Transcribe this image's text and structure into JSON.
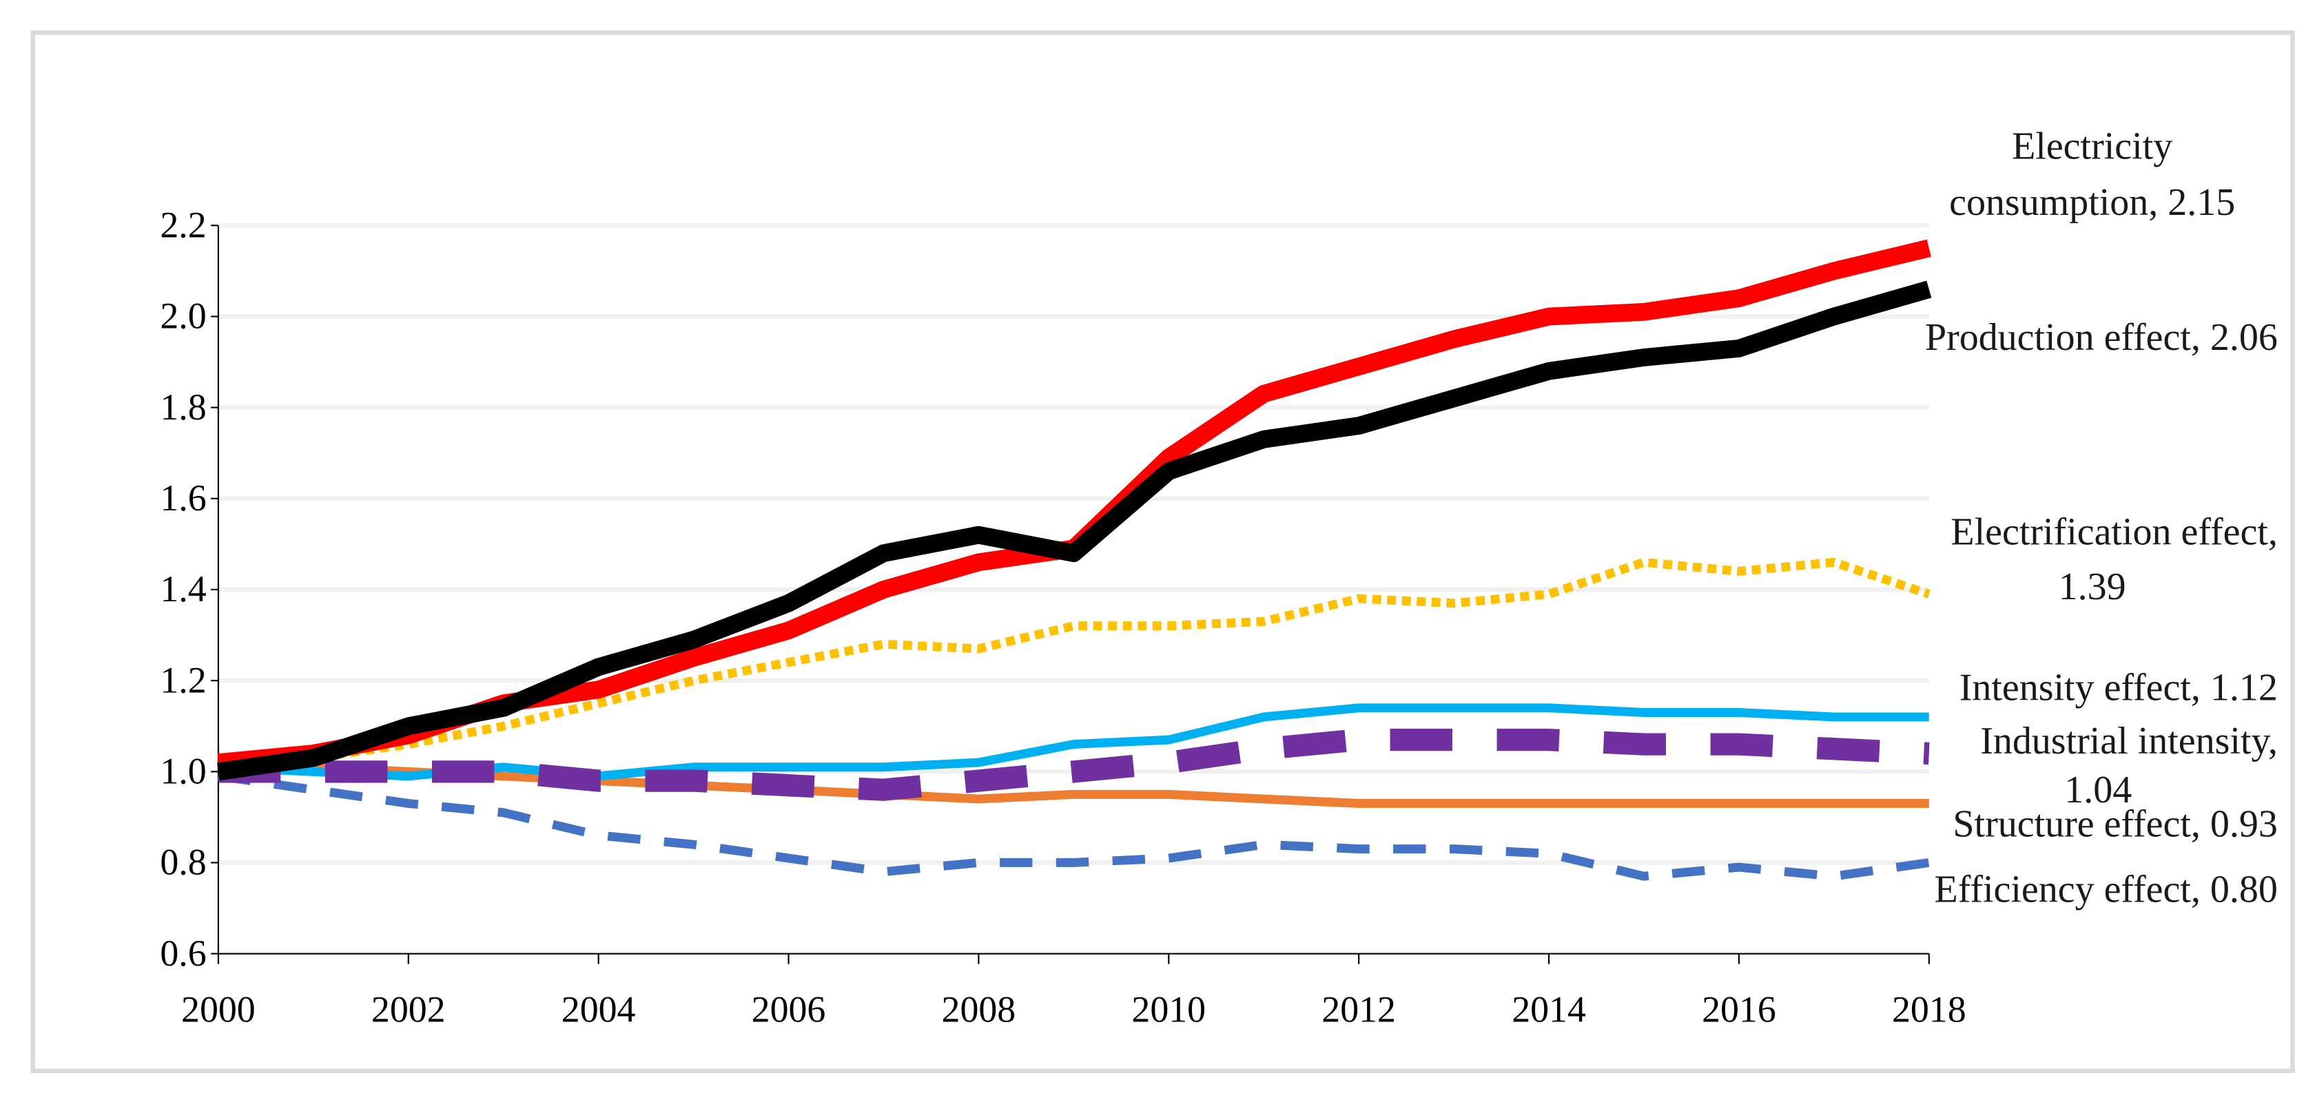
{
  "chart_data": {
    "type": "line",
    "title": "",
    "xlabel": "",
    "ylabel": "",
    "x": [
      2000,
      2001,
      2002,
      2003,
      2004,
      2005,
      2006,
      2007,
      2008,
      2009,
      2010,
      2011,
      2012,
      2013,
      2014,
      2015,
      2016,
      2017,
      2018
    ],
    "xticks": [
      "2000",
      "2002",
      "2004",
      "2006",
      "2008",
      "2010",
      "2012",
      "2014",
      "2016",
      "2018"
    ],
    "yticks": [
      "0.6",
      "0.8",
      "1.0",
      "1.2",
      "1.4",
      "1.6",
      "1.8",
      "2.0",
      "2.2"
    ],
    "ylim": [
      0.6,
      2.2
    ],
    "xlim": [
      2000,
      2018
    ],
    "grid": "horizontal",
    "legend": "inline-right",
    "series": [
      {
        "name": "Structure effect",
        "end_label": [
          "Structure effect, 0.93"
        ],
        "color": "#ED7D31",
        "style": "solid",
        "values": [
          1.01,
          1.01,
          1.0,
          0.99,
          0.98,
          0.97,
          0.96,
          0.95,
          0.94,
          0.95,
          0.95,
          0.94,
          0.93,
          0.93,
          0.93,
          0.93,
          0.93,
          0.93,
          0.93
        ]
      },
      {
        "name": "Efficiency effect",
        "end_label": [
          "Efficiency effect, 0.80"
        ],
        "color": "#4472C4",
        "style": "dash",
        "values": [
          0.99,
          0.96,
          0.93,
          0.91,
          0.86,
          0.84,
          0.81,
          0.78,
          0.8,
          0.8,
          0.81,
          0.84,
          0.83,
          0.83,
          0.82,
          0.77,
          0.79,
          0.77,
          0.8
        ]
      },
      {
        "name": "Intensity effect",
        "end_label": [
          "Intensity effect, 1.12"
        ],
        "color": "#00B0F0",
        "style": "solid",
        "values": [
          1.01,
          1.0,
          0.99,
          1.01,
          0.99,
          1.01,
          1.01,
          1.01,
          1.02,
          1.06,
          1.07,
          1.12,
          1.14,
          1.14,
          1.14,
          1.13,
          1.13,
          1.12,
          1.12
        ]
      },
      {
        "name": "Industrial intensity",
        "end_label": [
          "Industrial intensity,",
          "1.04"
        ],
        "color": "#7030A0",
        "style": "longdash",
        "values": [
          1.0,
          1.0,
          1.0,
          1.0,
          0.98,
          0.98,
          0.97,
          0.96,
          0.98,
          1.0,
          1.02,
          1.05,
          1.07,
          1.07,
          1.07,
          1.06,
          1.06,
          1.05,
          1.04
        ]
      },
      {
        "name": "Electrification effect",
        "end_label": [
          "Electrification effect,",
          "1.39"
        ],
        "color": "#FFC000",
        "style": "dot",
        "values": [
          1.0,
          1.03,
          1.06,
          1.1,
          1.15,
          1.2,
          1.24,
          1.28,
          1.27,
          1.32,
          1.32,
          1.33,
          1.38,
          1.37,
          1.39,
          1.46,
          1.44,
          1.46,
          1.39
        ]
      },
      {
        "name": "Electricity consumption",
        "end_label": [
          "Electricity",
          "consumption, 2.15"
        ],
        "color": "#FF0000",
        "style": "thick",
        "values": [
          1.02,
          1.04,
          1.08,
          1.15,
          1.18,
          1.25,
          1.31,
          1.4,
          1.46,
          1.49,
          1.69,
          1.83,
          1.89,
          1.95,
          2.0,
          2.01,
          2.04,
          2.1,
          2.15
        ]
      },
      {
        "name": "Production effect",
        "end_label": [
          "Production effect, 2.06"
        ],
        "color": "#000000",
        "style": "thick",
        "values": [
          1.0,
          1.03,
          1.1,
          1.14,
          1.23,
          1.29,
          1.37,
          1.48,
          1.52,
          1.48,
          1.66,
          1.73,
          1.76,
          1.82,
          1.88,
          1.91,
          1.93,
          2.0,
          2.06
        ]
      }
    ]
  }
}
